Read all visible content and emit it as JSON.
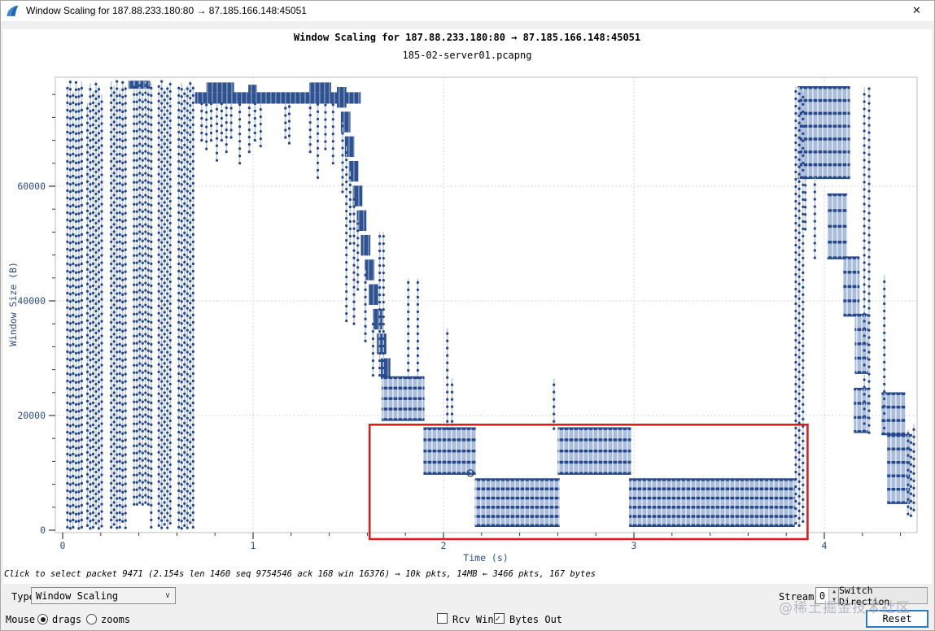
{
  "window": {
    "title": "Window Scaling for 187.88.233.180:80 → 87.185.166.148:45051",
    "close_glyph": "✕"
  },
  "chart": {
    "title": "Window Scaling for 187.88.233.180:80 → 87.185.166.148:45051",
    "subtitle": "185-02-server01.pcapng",
    "xlabel": "Time (s)",
    "ylabel": "Window Size (B)"
  },
  "status_line": "Click to select packet 9471 (2.154s len 1460 seq 9754546 ack 168 win 16376)  →  10k pkts, 14MB  ←  3466 pkts, 167 bytes",
  "controls": {
    "type_label": "Type",
    "type_value": "Window Scaling",
    "chevron": "∨",
    "mouse_label": "Mouse",
    "radio_drags": "drags",
    "radio_zooms": "zooms",
    "mouse_selected": "drags",
    "checkbox_rcv_win_label": "Rcv Win",
    "rcv_win_checked": false,
    "checkbox_bytes_out_label": "Bytes Out",
    "bytes_out_checked": true,
    "stream_label": "Stream",
    "stream_value": "0",
    "spin_up": "▲",
    "spin_down": "▼",
    "switch_direction_label": "Switch Direction",
    "reset_label": "Reset"
  },
  "watermark": "@稀土掘金技术社区",
  "chart_data": {
    "type": "scatter",
    "title": "Window Scaling for 187.88.233.180:80 → 87.185.166.148:45051",
    "subtitle": "185-02-server01.pcapng",
    "xlabel": "Time (s)",
    "ylabel": "Window Size (B)",
    "xlim": [
      0,
      4.49
    ],
    "ylim": [
      0,
      79000
    ],
    "x_ticks": [
      0,
      1,
      2,
      3,
      4
    ],
    "x_minor_step": 0.2,
    "y_ticks": [
      0,
      20000,
      40000,
      60000
    ],
    "y_minor_step": 4000,
    "grid": true,
    "point_color": "#24468a",
    "stem_color": "#b3c3dc",
    "block_fill": "#a9bcd9",
    "band_fill": "#2e5190",
    "annotation_color": "#de1c1c",
    "description": "Bytes-out stem/segment plot; window size in bytes vs time in seconds; red box highlights low-window region between ~1.6s and ~3.9s",
    "stems": [
      [
        0.025,
        500,
        77500
      ],
      [
        0.04,
        300,
        78300
      ],
      [
        0.055,
        500,
        76500
      ],
      [
        0.07,
        1500,
        78300
      ],
      [
        0.085,
        300,
        77000
      ],
      [
        0.1,
        500,
        78300
      ],
      [
        0.13,
        800,
        74500
      ],
      [
        0.145,
        300,
        78000
      ],
      [
        0.16,
        500,
        76500
      ],
      [
        0.175,
        1200,
        78300
      ],
      [
        0.19,
        300,
        77500
      ],
      [
        0.205,
        700,
        76000
      ],
      [
        0.255,
        500,
        78300
      ],
      [
        0.27,
        1000,
        77500
      ],
      [
        0.285,
        400,
        78300
      ],
      [
        0.3,
        500,
        77000
      ],
      [
        0.315,
        1500,
        78300
      ],
      [
        0.33,
        400,
        77500
      ],
      [
        0.375,
        4500,
        78300
      ],
      [
        0.39,
        4500,
        77500
      ],
      [
        0.405,
        4800,
        78300
      ],
      [
        0.42,
        4500,
        77000
      ],
      [
        0.435,
        4800,
        78300
      ],
      [
        0.45,
        4500,
        77500
      ],
      [
        0.465,
        500,
        78000
      ],
      [
        0.505,
        800,
        77500
      ],
      [
        0.52,
        400,
        78300
      ],
      [
        0.535,
        1000,
        77000
      ],
      [
        0.55,
        400,
        77500
      ],
      [
        0.565,
        1200,
        78300
      ],
      [
        0.61,
        500,
        77500
      ],
      [
        0.625,
        300,
        78000
      ],
      [
        0.64,
        800,
        77000
      ],
      [
        0.655,
        400,
        77500
      ],
      [
        0.67,
        1300,
        78300
      ],
      [
        0.685,
        500,
        77500
      ],
      [
        0.73,
        68000,
        74400
      ],
      [
        0.755,
        66500,
        74400
      ],
      [
        0.78,
        68000,
        74400
      ],
      [
        0.81,
        64500,
        74400
      ],
      [
        0.835,
        68000,
        74400
      ],
      [
        0.86,
        66000,
        74400
      ],
      [
        0.885,
        68500,
        74400
      ],
      [
        0.93,
        64000,
        74400
      ],
      [
        0.98,
        66000,
        74400
      ],
      [
        1.01,
        68000,
        74400
      ],
      [
        1.04,
        67000,
        74400
      ],
      [
        1.17,
        68500,
        74400
      ],
      [
        1.19,
        67500,
        74400
      ],
      [
        1.3,
        66000,
        74400
      ],
      [
        1.34,
        61500,
        74400
      ],
      [
        1.38,
        66500,
        74400
      ],
      [
        1.42,
        64000,
        74400
      ],
      [
        1.47,
        59000,
        71200
      ],
      [
        1.49,
        36500,
        67000
      ],
      [
        1.51,
        50000,
        62600
      ],
      [
        1.53,
        36000,
        58000
      ],
      [
        1.55,
        42000,
        54000
      ],
      [
        1.59,
        33000,
        45400
      ],
      [
        1.63,
        27000,
        36800
      ],
      [
        1.665,
        27000,
        52000
      ],
      [
        1.685,
        27000,
        52000
      ],
      [
        1.815,
        26600,
        43900
      ],
      [
        1.865,
        26600,
        43900
      ],
      [
        2.02,
        17700,
        35200
      ],
      [
        2.045,
        17700,
        26500
      ],
      [
        2.58,
        17700,
        26400
      ],
      [
        3.85,
        1200,
        77300
      ],
      [
        3.868,
        800,
        77300
      ],
      [
        3.888,
        1500,
        76500
      ],
      [
        3.9,
        52500,
        61500
      ],
      [
        3.95,
        47500,
        61500
      ],
      [
        4.21,
        17300,
        77300
      ],
      [
        4.235,
        17000,
        77300
      ],
      [
        4.315,
        17800,
        44500
      ],
      [
        4.44,
        2800,
        17500
      ],
      [
        4.455,
        2500,
        16800
      ],
      [
        4.47,
        3500,
        18500
      ]
    ],
    "bands": [
      [
        0.695,
        1.565,
        74400,
        76400
      ],
      [
        0.345,
        0.46,
        77000,
        78400
      ],
      [
        0.755,
        0.9,
        76400,
        78100
      ],
      [
        0.975,
        1.02,
        76400,
        77700
      ],
      [
        1.295,
        1.41,
        76400,
        78100
      ],
      [
        1.44,
        1.49,
        73700,
        77300
      ],
      [
        1.461,
        1.511,
        69400,
        73000
      ],
      [
        1.482,
        1.532,
        65100,
        68700
      ],
      [
        1.503,
        1.553,
        60800,
        64400
      ],
      [
        1.524,
        1.574,
        56500,
        60100
      ],
      [
        1.545,
        1.595,
        52200,
        55800
      ],
      [
        1.566,
        1.616,
        47900,
        51500
      ],
      [
        1.587,
        1.637,
        43600,
        47200
      ],
      [
        1.608,
        1.658,
        39300,
        42900
      ],
      [
        1.629,
        1.679,
        35000,
        38600
      ],
      [
        1.65,
        1.7,
        30700,
        34300
      ],
      [
        1.671,
        1.721,
        26400,
        30000
      ]
    ],
    "blocks": [
      [
        1.675,
        1.9,
        19300,
        26600,
        5
      ],
      [
        1.895,
        2.17,
        9900,
        17700,
        5
      ],
      [
        2.165,
        2.61,
        800,
        8800,
        6
      ],
      [
        2.6,
        2.985,
        9900,
        17700,
        5
      ],
      [
        2.975,
        3.845,
        800,
        8800,
        6
      ],
      [
        3.86,
        4.135,
        61500,
        77200,
        8
      ],
      [
        4.015,
        4.12,
        47500,
        58500,
        5
      ],
      [
        4.1,
        4.185,
        37500,
        47500,
        5
      ],
      [
        4.16,
        4.23,
        27500,
        37500,
        5
      ],
      [
        4.155,
        4.23,
        17200,
        24600,
        4
      ],
      [
        4.3,
        4.425,
        16800,
        23800,
        4
      ],
      [
        4.33,
        4.45,
        4800,
        16500,
        6
      ]
    ],
    "selected_packet_marker": {
      "t": 2.141,
      "v": 9950
    },
    "red_annotation_box": {
      "t0": 1.612,
      "t1": 3.912,
      "v0": -1560,
      "v1": 18400
    },
    "legend": []
  }
}
